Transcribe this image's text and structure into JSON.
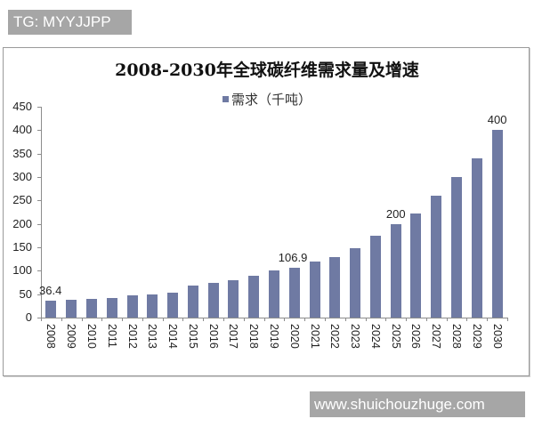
{
  "watermarks": {
    "top": "TG: MYYJJPP",
    "bottom": "www.shuichouzhuge.com"
  },
  "chart_data": {
    "type": "bar",
    "title": "2008-2030年全球碳纤维需求量及增速",
    "legend": [
      {
        "name": "需求（千吨）",
        "color": "#6f7aa3"
      }
    ],
    "legend_position": "top",
    "xlabel": "",
    "ylabel": "",
    "ylim": [
      0,
      450
    ],
    "yticks": [
      0,
      50,
      100,
      150,
      200,
      250,
      300,
      350,
      400,
      450
    ],
    "grid": false,
    "categories": [
      "2008",
      "2009",
      "2010",
      "2011",
      "2012",
      "2013",
      "2014",
      "2015",
      "2016",
      "2017",
      "2018",
      "2019",
      "2020",
      "2021",
      "2022",
      "2023",
      "2024",
      "2025",
      "2026",
      "2027",
      "2028",
      "2029",
      "2030"
    ],
    "series": [
      {
        "name": "需求（千吨）",
        "values": [
          36.4,
          38,
          40,
          41,
          47,
          50,
          54,
          68,
          74,
          79,
          90,
          100,
          106.9,
          119,
          129,
          149,
          175,
          200,
          223,
          260,
          300,
          340,
          400
        ]
      }
    ],
    "annotations": [
      {
        "category": "2008",
        "label": "36.4"
      },
      {
        "category": "2020",
        "label": "106.9"
      },
      {
        "category": "2025",
        "label": "200"
      },
      {
        "category": "2030",
        "label": "400"
      }
    ]
  }
}
